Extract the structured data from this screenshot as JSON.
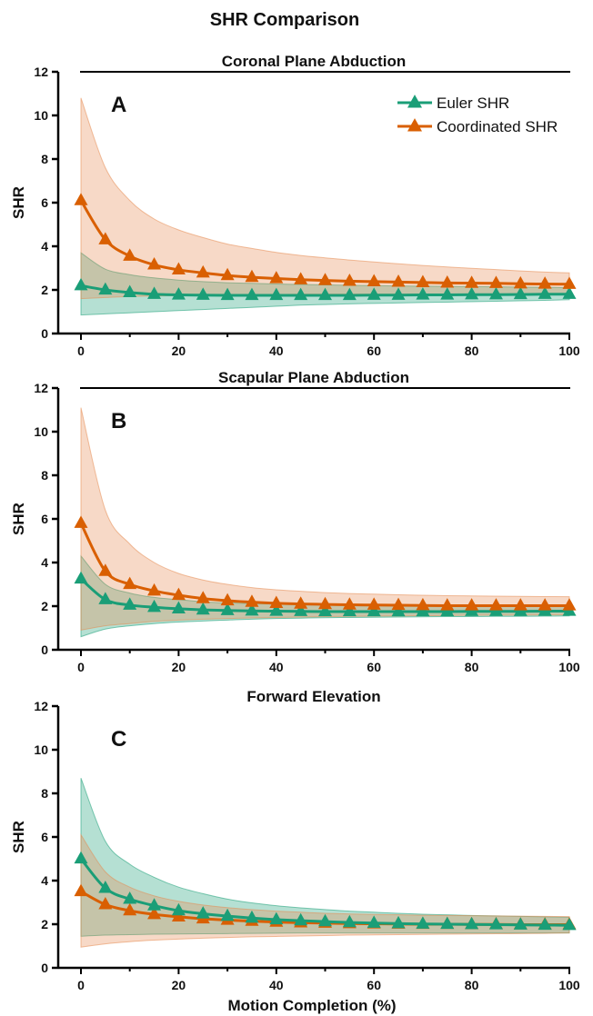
{
  "figure": {
    "title": "SHR Comparison",
    "xlabel": "Motion Completion (%)",
    "ylabel": "SHR"
  },
  "legend": {
    "position": "top-right",
    "entries": [
      "Euler SHR",
      "Coordinated SHR"
    ]
  },
  "colors": {
    "euler": "#1a9e77",
    "coordinated": "#d95f02",
    "euler_fill": "#1a9e77",
    "coordinated_fill": "#e58a50"
  },
  "chart_data": [
    {
      "type": "line",
      "panel_label": "A",
      "title": "Coronal Plane Abduction",
      "xlabel": "",
      "ylabel": "SHR",
      "xlim": [
        0,
        100
      ],
      "ylim": [
        0,
        12
      ],
      "x_ticks": [
        0,
        20,
        40,
        60,
        80,
        100
      ],
      "y_ticks": [
        0,
        2,
        4,
        6,
        8,
        10,
        12
      ],
      "legend": "top-right",
      "x": [
        0,
        5,
        10,
        15,
        20,
        25,
        30,
        35,
        40,
        45,
        50,
        55,
        60,
        65,
        70,
        75,
        80,
        85,
        90,
        95,
        100
      ],
      "series": [
        {
          "name": "Euler SHR",
          "values": [
            2.2,
            2.0,
            1.88,
            1.8,
            1.77,
            1.76,
            1.75,
            1.75,
            1.75,
            1.75,
            1.75,
            1.75,
            1.76,
            1.76,
            1.77,
            1.77,
            1.78,
            1.78,
            1.79,
            1.8,
            1.8
          ],
          "band_upper": [
            3.7,
            2.95,
            2.7,
            2.55,
            2.45,
            2.38,
            2.33,
            2.3,
            2.27,
            2.25,
            2.23,
            2.21,
            2.2,
            2.18,
            2.17,
            2.16,
            2.15,
            2.14,
            2.13,
            2.12,
            2.1
          ],
          "band_lower": [
            0.85,
            0.9,
            0.95,
            1.0,
            1.05,
            1.1,
            1.15,
            1.2,
            1.25,
            1.3,
            1.33,
            1.36,
            1.38,
            1.4,
            1.42,
            1.44,
            1.46,
            1.48,
            1.5,
            1.52,
            1.55
          ]
        },
        {
          "name": "Coordinated SHR",
          "values": [
            6.1,
            4.3,
            3.55,
            3.15,
            2.92,
            2.78,
            2.66,
            2.58,
            2.52,
            2.47,
            2.43,
            2.4,
            2.38,
            2.36,
            2.34,
            2.32,
            2.31,
            2.3,
            2.28,
            2.27,
            2.26
          ],
          "band_upper": [
            10.8,
            7.6,
            6.1,
            5.25,
            4.75,
            4.4,
            4.1,
            3.9,
            3.72,
            3.58,
            3.47,
            3.37,
            3.28,
            3.2,
            3.12,
            3.05,
            2.99,
            2.93,
            2.87,
            2.82,
            2.78
          ],
          "band_lower": [
            1.6,
            1.65,
            1.7,
            1.72,
            1.74,
            1.76,
            1.77,
            1.78,
            1.79,
            1.8,
            1.8,
            1.8,
            1.8,
            1.8,
            1.8,
            1.8,
            1.8,
            1.8,
            1.8,
            1.8,
            1.8
          ]
        }
      ]
    },
    {
      "type": "line",
      "panel_label": "B",
      "title": "Scapular Plane Abduction",
      "xlabel": "",
      "ylabel": "SHR",
      "xlim": [
        0,
        100
      ],
      "ylim": [
        0,
        12
      ],
      "x_ticks": [
        0,
        20,
        40,
        60,
        80,
        100
      ],
      "y_ticks": [
        0,
        2,
        4,
        6,
        8,
        10,
        12
      ],
      "x": [
        0,
        5,
        10,
        15,
        20,
        25,
        30,
        35,
        40,
        45,
        50,
        55,
        60,
        65,
        70,
        75,
        80,
        85,
        90,
        95,
        100
      ],
      "series": [
        {
          "name": "Euler SHR",
          "values": [
            3.25,
            2.3,
            2.05,
            1.95,
            1.88,
            1.83,
            1.8,
            1.78,
            1.77,
            1.76,
            1.75,
            1.75,
            1.75,
            1.75,
            1.75,
            1.75,
            1.76,
            1.76,
            1.76,
            1.77,
            1.77
          ],
          "band_upper": [
            4.3,
            3.0,
            2.6,
            2.4,
            2.3,
            2.2,
            2.15,
            2.12,
            2.1,
            2.08,
            2.06,
            2.05,
            2.04,
            2.03,
            2.02,
            2.01,
            2.0,
            2.0,
            2.0,
            2.0,
            2.0
          ],
          "band_lower": [
            0.6,
            0.95,
            1.1,
            1.2,
            1.27,
            1.32,
            1.36,
            1.4,
            1.43,
            1.45,
            1.47,
            1.48,
            1.49,
            1.5,
            1.51,
            1.52,
            1.52,
            1.53,
            1.53,
            1.54,
            1.55
          ]
        },
        {
          "name": "Coordinated SHR",
          "values": [
            5.8,
            3.6,
            3.0,
            2.7,
            2.5,
            2.35,
            2.25,
            2.18,
            2.13,
            2.1,
            2.08,
            2.06,
            2.05,
            2.04,
            2.03,
            2.02,
            2.02,
            2.02,
            2.02,
            2.02,
            2.02
          ],
          "band_upper": [
            11.1,
            6.4,
            4.85,
            4.0,
            3.5,
            3.2,
            3.0,
            2.85,
            2.75,
            2.68,
            2.62,
            2.58,
            2.55,
            2.52,
            2.5,
            2.48,
            2.47,
            2.46,
            2.45,
            2.44,
            2.43
          ],
          "band_lower": [
            0.9,
            1.1,
            1.2,
            1.3,
            1.36,
            1.4,
            1.43,
            1.46,
            1.48,
            1.5,
            1.52,
            1.53,
            1.54,
            1.55,
            1.56,
            1.57,
            1.58,
            1.59,
            1.59,
            1.6,
            1.6
          ]
        }
      ]
    },
    {
      "type": "line",
      "panel_label": "C",
      "title": "Forward Elevation",
      "xlabel": "Motion Completion (%)",
      "ylabel": "SHR",
      "xlim": [
        0,
        100
      ],
      "ylim": [
        0,
        12
      ],
      "x_ticks": [
        0,
        20,
        40,
        60,
        80,
        100
      ],
      "y_ticks": [
        0,
        2,
        4,
        6,
        8,
        10,
        12
      ],
      "x": [
        0,
        5,
        10,
        15,
        20,
        25,
        30,
        35,
        40,
        45,
        50,
        55,
        60,
        65,
        70,
        75,
        80,
        85,
        90,
        95,
        100
      ],
      "series": [
        {
          "name": "Euler SHR",
          "values": [
            5.0,
            3.65,
            3.15,
            2.85,
            2.62,
            2.48,
            2.37,
            2.28,
            2.21,
            2.16,
            2.12,
            2.08,
            2.05,
            2.03,
            2.01,
            2.0,
            1.99,
            1.98,
            1.97,
            1.96,
            1.95
          ],
          "band_upper": [
            8.7,
            5.8,
            4.75,
            4.15,
            3.7,
            3.4,
            3.15,
            2.98,
            2.85,
            2.75,
            2.67,
            2.6,
            2.55,
            2.5,
            2.46,
            2.43,
            2.4,
            2.38,
            2.36,
            2.34,
            2.32
          ],
          "band_lower": [
            1.45,
            1.5,
            1.52,
            1.54,
            1.55,
            1.56,
            1.57,
            1.58,
            1.59,
            1.6,
            1.6,
            1.6,
            1.6,
            1.6,
            1.6,
            1.6,
            1.6,
            1.6,
            1.6,
            1.6,
            1.6
          ]
        },
        {
          "name": "Coordinated SHR",
          "values": [
            3.5,
            2.9,
            2.62,
            2.45,
            2.34,
            2.25,
            2.19,
            2.14,
            2.1,
            2.07,
            2.05,
            2.03,
            2.02,
            2.01,
            2.0,
            2.0,
            1.99,
            1.99,
            1.98,
            1.98,
            1.98
          ],
          "band_upper": [
            6.1,
            4.4,
            3.7,
            3.3,
            3.05,
            2.88,
            2.76,
            2.67,
            2.6,
            2.55,
            2.5,
            2.47,
            2.45,
            2.43,
            2.41,
            2.4,
            2.39,
            2.38,
            2.37,
            2.36,
            2.35
          ],
          "band_lower": [
            0.95,
            1.1,
            1.2,
            1.27,
            1.32,
            1.36,
            1.39,
            1.42,
            1.44,
            1.46,
            1.48,
            1.5,
            1.51,
            1.52,
            1.53,
            1.54,
            1.55,
            1.56,
            1.57,
            1.58,
            1.6
          ]
        }
      ]
    }
  ]
}
